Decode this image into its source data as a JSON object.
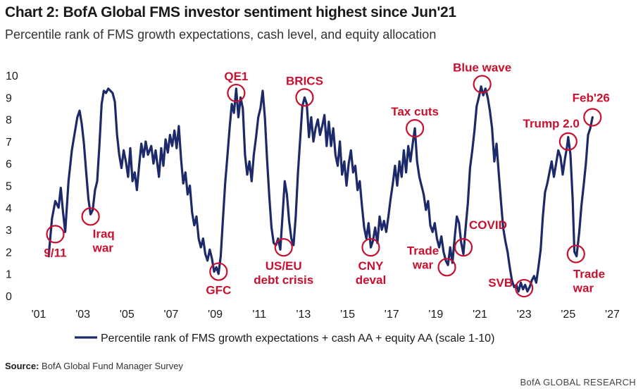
{
  "title": "Chart 2: BofA Global FMS investor sentiment highest since Jun'21",
  "subtitle": "Percentile rank of FMS growth expectations, cash level, and equity allocation",
  "source_label": "Source:",
  "source_text": "BofA Global Fund Manager Survey",
  "brand": "BofA GLOBAL RESEARCH",
  "colors": {
    "line": "#1c2a6b",
    "annotation": "#c8102e"
  },
  "chart_data": {
    "type": "line",
    "title": "Chart 2: BofA Global FMS investor sentiment highest since Jun'21",
    "subtitle": "Percentile rank of FMS growth expectations, cash level, and equity allocation",
    "xlabel": "",
    "ylabel": "",
    "xlim": [
      2001.0,
      2027.4
    ],
    "ylim": [
      0,
      10
    ],
    "x_ticks": [
      2001,
      2003,
      2005,
      2007,
      2009,
      2011,
      2013,
      2015,
      2017,
      2019,
      2021,
      2023,
      2025,
      2027
    ],
    "x_tick_labels": [
      "'01",
      "'03",
      "'05",
      "'07",
      "'09",
      "'11",
      "'13",
      "'15",
      "'17",
      "'19",
      "'21",
      "'23",
      "'25",
      "'27"
    ],
    "y_ticks": [
      0,
      1,
      2,
      3,
      4,
      5,
      6,
      7,
      8,
      9,
      10
    ],
    "legend": {
      "position": "bottom",
      "label": "Percentile rank of FMS growth expectations + cash AA + equity AA (scale 1-10)"
    },
    "series": [
      {
        "name": "Percentile rank of FMS growth expectations + cash AA + equity AA (scale 1-10)",
        "points": [
          [
            2001.45,
            1.8
          ],
          [
            2001.6,
            3.5
          ],
          [
            2001.75,
            4.3
          ],
          [
            2001.9,
            4.0
          ],
          [
            2002.0,
            4.9
          ],
          [
            2002.1,
            3.8
          ],
          [
            2002.2,
            2.9
          ],
          [
            2002.35,
            5.2
          ],
          [
            2002.5,
            6.6
          ],
          [
            2002.6,
            7.2
          ],
          [
            2002.75,
            8.1
          ],
          [
            2002.85,
            8.4
          ],
          [
            2002.95,
            7.8
          ],
          [
            2003.05,
            6.9
          ],
          [
            2003.15,
            5.6
          ],
          [
            2003.25,
            4.4
          ],
          [
            2003.35,
            3.7
          ],
          [
            2003.45,
            3.9
          ],
          [
            2003.55,
            4.8
          ],
          [
            2003.65,
            5.2
          ],
          [
            2003.75,
            6.8
          ],
          [
            2003.85,
            8.7
          ],
          [
            2003.95,
            9.3
          ],
          [
            2004.05,
            9.2
          ],
          [
            2004.15,
            9.4
          ],
          [
            2004.25,
            9.3
          ],
          [
            2004.35,
            9.2
          ],
          [
            2004.45,
            8.8
          ],
          [
            2004.55,
            7.3
          ],
          [
            2004.65,
            6.4
          ],
          [
            2004.75,
            5.8
          ],
          [
            2004.85,
            6.6
          ],
          [
            2004.95,
            6.1
          ],
          [
            2005.05,
            5.4
          ],
          [
            2005.15,
            6.7
          ],
          [
            2005.25,
            5.2
          ],
          [
            2005.35,
            5.6
          ],
          [
            2005.45,
            4.8
          ],
          [
            2005.55,
            5.9
          ],
          [
            2005.65,
            6.9
          ],
          [
            2005.75,
            6.3
          ],
          [
            2005.85,
            7.0
          ],
          [
            2005.95,
            6.4
          ],
          [
            2006.1,
            6.8
          ],
          [
            2006.2,
            6.0
          ],
          [
            2006.3,
            6.6
          ],
          [
            2006.45,
            5.4
          ],
          [
            2006.55,
            6.7
          ],
          [
            2006.65,
            5.9
          ],
          [
            2006.75,
            7.1
          ],
          [
            2006.85,
            6.5
          ],
          [
            2006.95,
            7.3
          ],
          [
            2007.05,
            6.8
          ],
          [
            2007.15,
            7.5
          ],
          [
            2007.25,
            6.7
          ],
          [
            2007.35,
            7.7
          ],
          [
            2007.45,
            6.2
          ],
          [
            2007.55,
            5.1
          ],
          [
            2007.65,
            5.6
          ],
          [
            2007.75,
            4.6
          ],
          [
            2007.85,
            5.0
          ],
          [
            2007.95,
            3.8
          ],
          [
            2008.05,
            3.2
          ],
          [
            2008.15,
            3.6
          ],
          [
            2008.25,
            2.6
          ],
          [
            2008.35,
            2.2
          ],
          [
            2008.45,
            2.6
          ],
          [
            2008.55,
            1.9
          ],
          [
            2008.65,
            1.6
          ],
          [
            2008.75,
            2.1
          ],
          [
            2008.85,
            1.7
          ],
          [
            2008.95,
            1.1
          ],
          [
            2009.05,
            1.3
          ],
          [
            2009.15,
            1.0
          ],
          [
            2009.25,
            1.8
          ],
          [
            2009.35,
            3.5
          ],
          [
            2009.45,
            5.1
          ],
          [
            2009.55,
            6.3
          ],
          [
            2009.65,
            7.6
          ],
          [
            2009.75,
            8.7
          ],
          [
            2009.85,
            8.3
          ],
          [
            2009.95,
            9.4
          ],
          [
            2010.05,
            8.1
          ],
          [
            2010.15,
            9.0
          ],
          [
            2010.25,
            8.5
          ],
          [
            2010.35,
            6.4
          ],
          [
            2010.45,
            5.5
          ],
          [
            2010.55,
            6.1
          ],
          [
            2010.65,
            5.2
          ],
          [
            2010.75,
            6.4
          ],
          [
            2010.85,
            7.2
          ],
          [
            2010.95,
            8.1
          ],
          [
            2011.05,
            8.5
          ],
          [
            2011.15,
            9.3
          ],
          [
            2011.25,
            8.1
          ],
          [
            2011.35,
            6.2
          ],
          [
            2011.45,
            4.5
          ],
          [
            2011.55,
            3.1
          ],
          [
            2011.65,
            2.4
          ],
          [
            2011.75,
            2.3
          ],
          [
            2011.85,
            2.6
          ],
          [
            2011.95,
            2.1
          ],
          [
            2012.05,
            3.6
          ],
          [
            2012.15,
            5.2
          ],
          [
            2012.25,
            4.6
          ],
          [
            2012.35,
            3.4
          ],
          [
            2012.45,
            2.6
          ],
          [
            2012.55,
            2.3
          ],
          [
            2012.65,
            3.6
          ],
          [
            2012.75,
            5.6
          ],
          [
            2012.85,
            7.1
          ],
          [
            2012.95,
            8.6
          ],
          [
            2013.05,
            9.0
          ],
          [
            2013.15,
            8.7
          ],
          [
            2013.25,
            7.2
          ],
          [
            2013.35,
            8.1
          ],
          [
            2013.45,
            7.0
          ],
          [
            2013.55,
            7.6
          ],
          [
            2013.65,
            8.0
          ],
          [
            2013.75,
            7.3
          ],
          [
            2013.85,
            7.7
          ],
          [
            2013.95,
            8.2
          ],
          [
            2014.05,
            6.8
          ],
          [
            2014.15,
            7.9
          ],
          [
            2014.25,
            6.8
          ],
          [
            2014.35,
            7.6
          ],
          [
            2014.45,
            6.4
          ],
          [
            2014.55,
            5.9
          ],
          [
            2014.65,
            7.0
          ],
          [
            2014.75,
            5.5
          ],
          [
            2014.85,
            6.1
          ],
          [
            2014.95,
            5.0
          ],
          [
            2015.05,
            6.0
          ],
          [
            2015.15,
            6.6
          ],
          [
            2015.25,
            5.6
          ],
          [
            2015.35,
            5.9
          ],
          [
            2015.45,
            4.8
          ],
          [
            2015.55,
            5.2
          ],
          [
            2015.65,
            4.1
          ],
          [
            2015.75,
            3.1
          ],
          [
            2015.85,
            2.6
          ],
          [
            2015.95,
            3.3
          ],
          [
            2016.05,
            2.2
          ],
          [
            2016.15,
            2.5
          ],
          [
            2016.25,
            3.1
          ],
          [
            2016.35,
            2.4
          ],
          [
            2016.45,
            3.6
          ],
          [
            2016.55,
            3.0
          ],
          [
            2016.65,
            3.4
          ],
          [
            2016.75,
            2.9
          ],
          [
            2016.85,
            3.6
          ],
          [
            2016.95,
            4.4
          ],
          [
            2017.05,
            5.1
          ],
          [
            2017.15,
            5.9
          ],
          [
            2017.25,
            5.0
          ],
          [
            2017.35,
            6.1
          ],
          [
            2017.45,
            5.4
          ],
          [
            2017.55,
            6.6
          ],
          [
            2017.65,
            5.6
          ],
          [
            2017.75,
            6.8
          ],
          [
            2017.85,
            6.1
          ],
          [
            2017.95,
            6.9
          ],
          [
            2018.05,
            7.6
          ],
          [
            2018.15,
            6.1
          ],
          [
            2018.25,
            5.4
          ],
          [
            2018.35,
            5.0
          ],
          [
            2018.45,
            4.6
          ],
          [
            2018.55,
            3.9
          ],
          [
            2018.65,
            4.3
          ],
          [
            2018.75,
            3.2
          ],
          [
            2018.85,
            2.9
          ],
          [
            2018.95,
            3.3
          ],
          [
            2019.05,
            2.6
          ],
          [
            2019.15,
            2.2
          ],
          [
            2019.25,
            2.7
          ],
          [
            2019.35,
            2.0
          ],
          [
            2019.45,
            1.6
          ],
          [
            2019.55,
            1.4
          ],
          [
            2019.65,
            2.2
          ],
          [
            2019.75,
            1.5
          ],
          [
            2019.85,
            2.6
          ],
          [
            2019.95,
            3.6
          ],
          [
            2020.05,
            3.3
          ],
          [
            2020.15,
            2.4
          ],
          [
            2020.25,
            1.9
          ],
          [
            2020.35,
            3.1
          ],
          [
            2020.45,
            4.2
          ],
          [
            2020.55,
            5.8
          ],
          [
            2020.65,
            6.6
          ],
          [
            2020.75,
            7.5
          ],
          [
            2020.85,
            8.6
          ],
          [
            2020.95,
            9.0
          ],
          [
            2021.05,
            9.5
          ],
          [
            2021.15,
            9.1
          ],
          [
            2021.25,
            9.4
          ],
          [
            2021.35,
            9.0
          ],
          [
            2021.45,
            8.4
          ],
          [
            2021.55,
            7.6
          ],
          [
            2021.65,
            6.1
          ],
          [
            2021.75,
            6.9
          ],
          [
            2021.85,
            5.6
          ],
          [
            2021.95,
            4.3
          ],
          [
            2022.05,
            3.1
          ],
          [
            2022.15,
            2.5
          ],
          [
            2022.25,
            2.0
          ],
          [
            2022.35,
            1.3
          ],
          [
            2022.45,
            0.7
          ],
          [
            2022.55,
            0.4
          ],
          [
            2022.65,
            0.5
          ],
          [
            2022.75,
            0.2
          ],
          [
            2022.85,
            0.6
          ],
          [
            2022.95,
            0.3
          ],
          [
            2023.05,
            0.5
          ],
          [
            2023.15,
            0.2
          ],
          [
            2023.25,
            0.4
          ],
          [
            2023.35,
            0.7
          ],
          [
            2023.45,
            0.9
          ],
          [
            2023.55,
            0.6
          ],
          [
            2023.65,
            1.3
          ],
          [
            2023.75,
            2.1
          ],
          [
            2023.85,
            3.6
          ],
          [
            2023.95,
            4.7
          ],
          [
            2024.05,
            5.1
          ],
          [
            2024.15,
            5.6
          ],
          [
            2024.25,
            6.1
          ],
          [
            2024.35,
            5.4
          ],
          [
            2024.45,
            6.0
          ],
          [
            2024.55,
            6.6
          ],
          [
            2024.65,
            6.3
          ],
          [
            2024.75,
            5.5
          ],
          [
            2024.85,
            6.2
          ],
          [
            2024.95,
            6.8
          ],
          [
            2025.0,
            7.2
          ],
          [
            2025.1,
            6.4
          ],
          [
            2025.2,
            4.4
          ],
          [
            2025.28,
            2.0
          ],
          [
            2025.38,
            1.8
          ],
          [
            2025.5,
            2.9
          ],
          [
            2025.6,
            4.1
          ],
          [
            2025.7,
            5.0
          ],
          [
            2025.8,
            6.0
          ],
          [
            2025.9,
            7.3
          ],
          [
            2026.0,
            7.6
          ],
          [
            2026.1,
            8.1
          ]
        ]
      }
    ],
    "annotations": [
      {
        "label": "9/11",
        "x": 2001.75,
        "y": 2.8,
        "label_pos": "below"
      },
      {
        "label": "Iraq war",
        "x": 2003.35,
        "y": 3.6,
        "label_pos": "below"
      },
      {
        "label": "GFC",
        "x": 2009.15,
        "y": 1.1,
        "label_pos": "below"
      },
      {
        "label": "QE1",
        "x": 2009.95,
        "y": 9.2,
        "label_pos": "above"
      },
      {
        "label": "US/EU debt crisis",
        "x": 2012.1,
        "y": 2.2,
        "label_pos": "below"
      },
      {
        "label": "BRICS",
        "x": 2013.05,
        "y": 9.0,
        "label_pos": "above"
      },
      {
        "label": "CNY deval",
        "x": 2016.05,
        "y": 2.2,
        "label_pos": "below"
      },
      {
        "label": "Tax cuts",
        "x": 2018.05,
        "y": 7.6,
        "label_pos": "above"
      },
      {
        "label": "Trade war",
        "x": 2019.5,
        "y": 1.3,
        "label_pos": "left"
      },
      {
        "label": "COVID",
        "x": 2020.25,
        "y": 2.2,
        "label_pos": "right"
      },
      {
        "label": "Blue wave",
        "x": 2021.1,
        "y": 9.6,
        "label_pos": "above"
      },
      {
        "label": "SVB",
        "x": 2023.0,
        "y": 0.35,
        "label_pos": "left"
      },
      {
        "label": "Trump 2.0",
        "x": 2025.0,
        "y": 7.0,
        "label_pos": "above"
      },
      {
        "label": "Trade war",
        "x": 2025.35,
        "y": 1.9,
        "label_pos": "below"
      },
      {
        "label": "Feb'26",
        "x": 2026.1,
        "y": 8.1,
        "label_pos": "above"
      }
    ]
  }
}
